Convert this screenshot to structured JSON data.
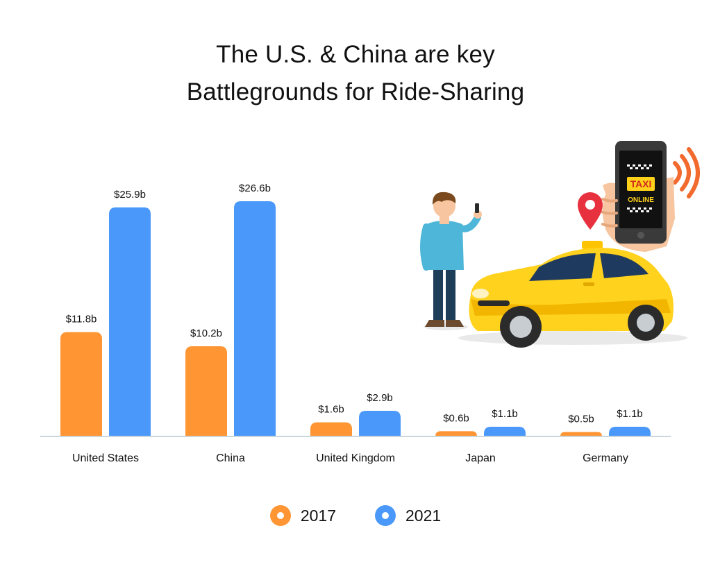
{
  "title": {
    "line1": "The U.S. & China are key",
    "line2": "Battlegrounds for Ride-Sharing"
  },
  "colors": {
    "s2017": "#FF9533",
    "s2021": "#4A98FA",
    "axis": "#C9D6DC"
  },
  "chart_data": {
    "type": "bar",
    "categories": [
      "United States",
      "China",
      "United Kingdom",
      "Japan",
      "Germany"
    ],
    "series": [
      {
        "name": "2017",
        "values": [
          11.8,
          10.2,
          1.6,
          0.6,
          0.5
        ],
        "labels": [
          "$11.8b",
          "$10.2b",
          "$1.6b",
          "$0.6b",
          "$0.5b"
        ]
      },
      {
        "name": "2021",
        "values": [
          25.9,
          26.6,
          2.9,
          1.1,
          1.1
        ],
        "labels": [
          "$25.9b",
          "$26.6b",
          "$2.9b",
          "$1.1b",
          "$1.1b"
        ]
      }
    ],
    "ylim": [
      0,
      26.6
    ],
    "grid": false,
    "legend": "bottom-center",
    "title": "The U.S. & China are key Battlegrounds for Ride-Sharing"
  },
  "legend": [
    {
      "label": "2017",
      "color": "#FF9533"
    },
    {
      "label": "2021",
      "color": "#4A98FA"
    }
  ],
  "illustration": {
    "icons": [
      "person-with-phone-icon",
      "taxi-car-icon",
      "hand-phone-icon",
      "location-pin-icon",
      "signal-waves-icon"
    ],
    "phone_text_top": "TAXI",
    "phone_text_bottom": "ONLINE"
  }
}
